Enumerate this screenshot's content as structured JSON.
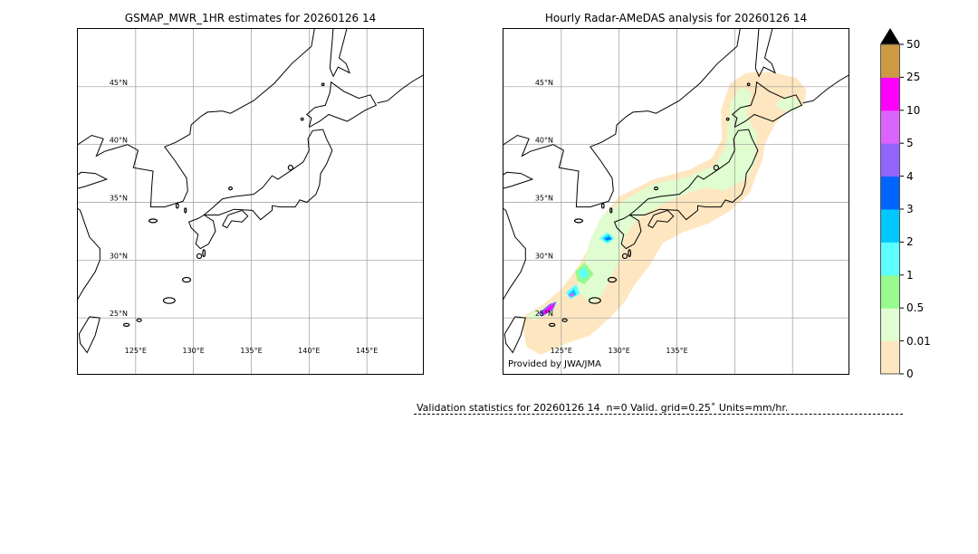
{
  "left_panel": {
    "title": "GSMAP_MWR_1HR estimates for 20260126 14",
    "lat_labels": [
      "45°N",
      "40°N",
      "35°N",
      "30°N",
      "25°N"
    ],
    "lat_values": [
      45,
      40,
      35,
      30,
      25
    ],
    "lon_labels": [
      "125°E",
      "130°E",
      "135°E",
      "140°E",
      "145°E"
    ],
    "lon_values": [
      125,
      130,
      135,
      140,
      145
    ],
    "rain_areas": []
  },
  "right_panel": {
    "title": "Hourly Radar-AMeDAS analysis for 20260126 14",
    "lat_labels": [
      "45°N",
      "40°N",
      "35°N",
      "30°N",
      "25°N"
    ],
    "lat_values": [
      45,
      40,
      35,
      30,
      25
    ],
    "lon_labels": [
      "125°E",
      "130°E",
      "135°E"
    ],
    "lon_values": [
      125,
      130,
      135
    ],
    "credit": "Provided by JWA/JMA",
    "rain_areas": [
      {
        "level": "0-0.01",
        "color": "#fee7c0",
        "polygon": [
          [
            121.8,
            25.2
          ],
          [
            123.5,
            26.2
          ],
          [
            125,
            27.5
          ],
          [
            126.5,
            29.5
          ],
          [
            127.6,
            31.5
          ],
          [
            128.3,
            33.5
          ],
          [
            130,
            35.5
          ],
          [
            133,
            37
          ],
          [
            136,
            37.8
          ],
          [
            138,
            38.8
          ],
          [
            138.9,
            40.5
          ],
          [
            138.8,
            43
          ],
          [
            139.6,
            45.3
          ],
          [
            141,
            46.2
          ],
          [
            143,
            46.3
          ],
          [
            145.3,
            45.8
          ],
          [
            146.2,
            44.7
          ],
          [
            146,
            43.4
          ],
          [
            144.5,
            42.8
          ],
          [
            143.5,
            41.8
          ],
          [
            142.6,
            40.0
          ],
          [
            142.4,
            38.6
          ],
          [
            141.8,
            37.2
          ],
          [
            141.3,
            35.8
          ],
          [
            139.5,
            34.2
          ],
          [
            137.8,
            33.2
          ],
          [
            135.5,
            32.4
          ],
          [
            133.8,
            31.5
          ],
          [
            132.6,
            29.5
          ],
          [
            131.3,
            27.8
          ],
          [
            130.5,
            26.4
          ],
          [
            129.2,
            25.0
          ],
          [
            127.5,
            23.5
          ],
          [
            125.5,
            22.8
          ],
          [
            123.2,
            21.8
          ],
          [
            122,
            22.5
          ],
          [
            121.7,
            24.0
          ]
        ]
      },
      {
        "level": "0.01-0.5",
        "color": "#dffdd0",
        "polygon": [
          [
            127.5,
            31.8
          ],
          [
            128.5,
            33.8
          ],
          [
            130.5,
            35.2
          ],
          [
            133,
            36.6
          ],
          [
            136,
            37.2
          ],
          [
            138.3,
            38.2
          ],
          [
            139.3,
            40
          ],
          [
            139.6,
            43.5
          ],
          [
            140.5,
            45
          ],
          [
            141.5,
            44.5
          ],
          [
            141,
            42.5
          ],
          [
            141.9,
            41
          ],
          [
            141.8,
            38.5
          ],
          [
            141,
            37
          ],
          [
            139,
            36
          ],
          [
            137.5,
            36.3
          ],
          [
            136,
            35.8
          ],
          [
            134,
            35
          ],
          [
            131.5,
            33.5
          ],
          [
            130.5,
            32.0
          ],
          [
            130.0,
            30
          ],
          [
            129.3,
            28.5
          ],
          [
            128.5,
            27
          ],
          [
            127.5,
            26.2
          ],
          [
            126.3,
            27.5
          ],
          [
            127,
            29.5
          ]
        ]
      },
      {
        "level": "0.01-0.5",
        "color": "#dffdd0",
        "polygon": [
          [
            143.5,
            43.5
          ],
          [
            144.5,
            44.2
          ],
          [
            145.6,
            43.8
          ],
          [
            145.4,
            42.9
          ],
          [
            144.2,
            42.9
          ]
        ]
      },
      {
        "level": "0.01-0.5",
        "color": "#dffdd0",
        "polygon": [
          [
            122.0,
            25.2
          ],
          [
            123.5,
            26.0
          ],
          [
            124.8,
            26.6
          ],
          [
            124.2,
            25.4
          ],
          [
            122.6,
            24.8
          ]
        ]
      },
      {
        "level": "0.5-1",
        "color": "#96fa8c",
        "polygon": [
          [
            126.2,
            29.0
          ],
          [
            127.0,
            29.8
          ],
          [
            127.8,
            28.8
          ],
          [
            127.0,
            27.9
          ],
          [
            126.4,
            28.2
          ]
        ]
      },
      {
        "level": "1-2",
        "color": "#5cfffd",
        "polygon": [
          [
            126.5,
            29.0
          ],
          [
            127.0,
            29.4
          ],
          [
            127.4,
            28.7
          ],
          [
            126.8,
            28.3
          ]
        ]
      },
      {
        "level": "1-2",
        "color": "#5cfffd",
        "polygon": [
          [
            125.4,
            27.2
          ],
          [
            126.3,
            27.9
          ],
          [
            126.6,
            27.1
          ],
          [
            125.8,
            26.6
          ]
        ]
      },
      {
        "level": "1-2",
        "color": "#5cfffd",
        "polygon": [
          [
            128.3,
            31.9
          ],
          [
            129.0,
            32.4
          ],
          [
            129.6,
            31.9
          ],
          [
            129.0,
            31.4
          ]
        ]
      },
      {
        "level": "2-3",
        "color": "#00c8fe",
        "polygon": [
          [
            128.6,
            31.9
          ],
          [
            129.1,
            32.2
          ],
          [
            129.4,
            31.8
          ],
          [
            128.9,
            31.6
          ]
        ]
      },
      {
        "level": "2-3",
        "color": "#00c8fe",
        "polygon": [
          [
            125.6,
            27.0
          ],
          [
            126.1,
            27.5
          ],
          [
            126.3,
            27.0
          ],
          [
            125.8,
            26.8
          ]
        ]
      },
      {
        "level": "3-4",
        "color": "#0064fe",
        "polygon": [
          [
            128.8,
            31.85
          ],
          [
            129.2,
            32.0
          ],
          [
            129.3,
            31.8
          ],
          [
            128.9,
            31.75
          ]
        ]
      },
      {
        "level": "4-5",
        "color": "#9164fe",
        "polygon": [
          [
            123.0,
            25.4
          ],
          [
            124.0,
            26.2
          ],
          [
            124.6,
            26.4
          ],
          [
            124.3,
            25.7
          ],
          [
            123.3,
            25.1
          ]
        ]
      },
      {
        "level": "5-10",
        "color": "#dc64fe",
        "polygon": [
          [
            125.7,
            27.0
          ],
          [
            126.0,
            27.2
          ],
          [
            126.1,
            26.9
          ],
          [
            125.8,
            26.8
          ]
        ]
      },
      {
        "level": "10-25",
        "color": "#fe00fe",
        "polygon": [
          [
            123.4,
            25.5
          ],
          [
            124.0,
            26.0
          ],
          [
            124.4,
            26.2
          ],
          [
            124.2,
            25.8
          ],
          [
            123.6,
            25.3
          ]
        ]
      }
    ]
  },
  "colorbar": {
    "labels": [
      "0",
      "0.01",
      "0.5",
      "1",
      "2",
      "3",
      "4",
      "5",
      "10",
      "25",
      "50"
    ],
    "colors": [
      "#fee7c0",
      "#dffdd0",
      "#96fa8c",
      "#5cfffd",
      "#00c8fe",
      "#0064fe",
      "#9164fe",
      "#dc64fe",
      "#fe00fe",
      "#cd9a43"
    ],
    "extend_color": "#000000"
  },
  "footer": {
    "text": "Validation statistics for 20260126 14  n=0 Valid. grid=0.25˚ Units=mm/hr."
  }
}
